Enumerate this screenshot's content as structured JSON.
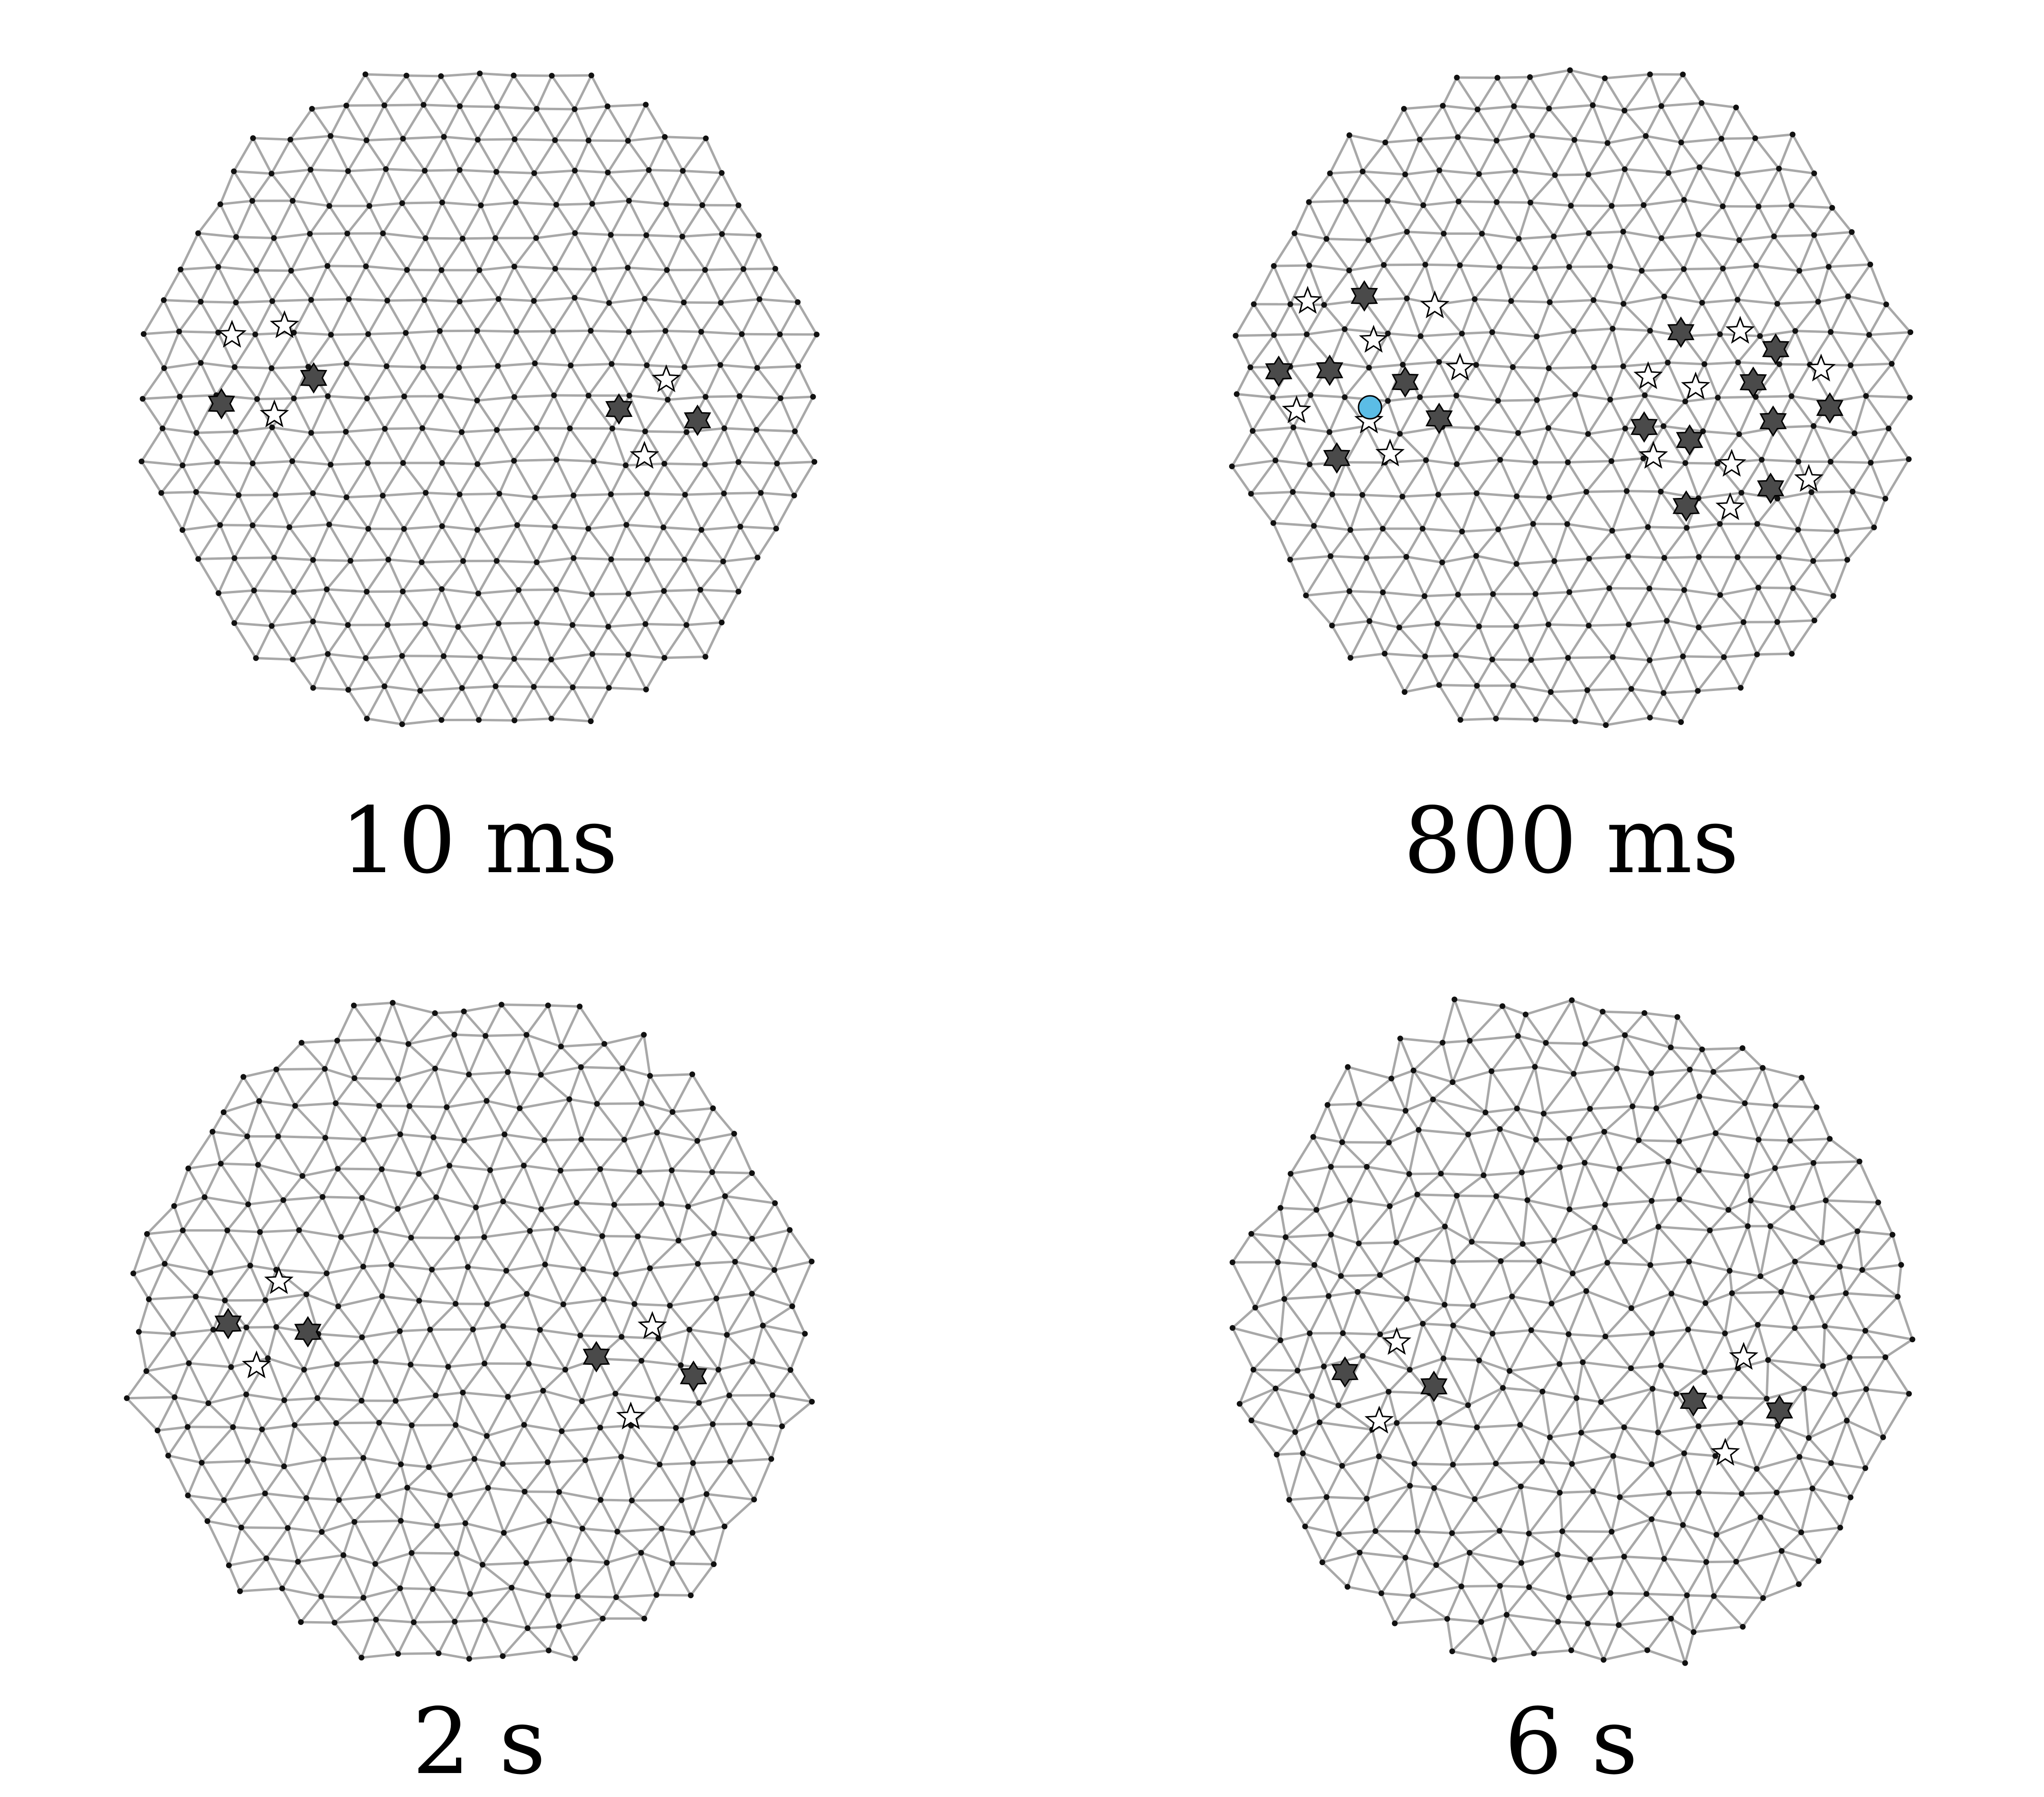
{
  "panels": [
    {
      "id": "p1",
      "label": "10 ms",
      "clusters": [
        {
          "dark": 2,
          "light": 3
        },
        {
          "dark": 2,
          "light": 2
        }
      ],
      "central_marker": false
    },
    {
      "id": "p2",
      "label": "800 ms",
      "clusters": [
        {
          "dark": 6,
          "light": 7
        },
        {
          "dark": 9,
          "light": 8
        }
      ],
      "central_marker": true
    },
    {
      "id": "p3",
      "label": "2 s",
      "clusters": [
        {
          "dark": 2,
          "light": 2
        },
        {
          "dark": 2,
          "light": 2
        }
      ],
      "central_marker": false
    },
    {
      "id": "p4",
      "label": "6 s",
      "clusters": [
        {
          "dark": 2,
          "light": 2
        },
        {
          "dark": 2,
          "light": 2
        }
      ],
      "central_marker": false
    }
  ],
  "colors": {
    "edge": "#a8a8a8",
    "node": "#111111",
    "star_dark": "#4a4a4a",
    "star_light": "#ffffff",
    "star_stroke": "#000000",
    "central_marker": "#5bbde6"
  },
  "icons": {
    "dark_marker": "six-point-star-icon",
    "light_marker": "five-point-star-icon",
    "central_marker": "circle-icon"
  }
}
